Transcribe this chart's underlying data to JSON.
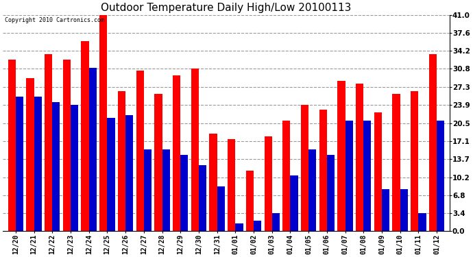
{
  "title": "Outdoor Temperature Daily High/Low 20100113",
  "copyright_text": "Copyright 2010 Cartronics.com",
  "dates": [
    "12/20",
    "12/21",
    "12/22",
    "12/23",
    "12/24",
    "12/25",
    "12/26",
    "12/27",
    "12/28",
    "12/29",
    "12/30",
    "12/31",
    "01/01",
    "01/02",
    "01/03",
    "01/04",
    "01/05",
    "01/06",
    "01/07",
    "01/08",
    "01/09",
    "01/10",
    "01/11",
    "01/12"
  ],
  "highs": [
    32.5,
    29.0,
    33.5,
    32.5,
    36.0,
    41.5,
    26.5,
    30.5,
    26.0,
    29.5,
    30.8,
    18.5,
    17.5,
    11.5,
    18.0,
    21.0,
    24.0,
    23.0,
    28.5,
    28.0,
    22.5,
    26.0,
    26.5,
    33.5
  ],
  "lows": [
    25.5,
    25.5,
    24.5,
    24.0,
    31.0,
    21.5,
    22.0,
    15.5,
    15.5,
    14.5,
    12.5,
    8.5,
    1.5,
    2.0,
    3.4,
    10.5,
    15.5,
    14.5,
    21.0,
    21.0,
    8.0,
    8.0,
    3.4,
    21.0
  ],
  "high_color": "#ff0000",
  "low_color": "#0000cc",
  "bg_color": "#ffffff",
  "plot_bg_color": "#ffffff",
  "grid_color": "#999999",
  "yticks": [
    0.0,
    3.4,
    6.8,
    10.2,
    13.7,
    17.1,
    20.5,
    23.9,
    27.3,
    30.8,
    34.2,
    37.6,
    41.0
  ],
  "bar_width": 0.42,
  "figsize": [
    6.9,
    3.75
  ],
  "dpi": 100
}
